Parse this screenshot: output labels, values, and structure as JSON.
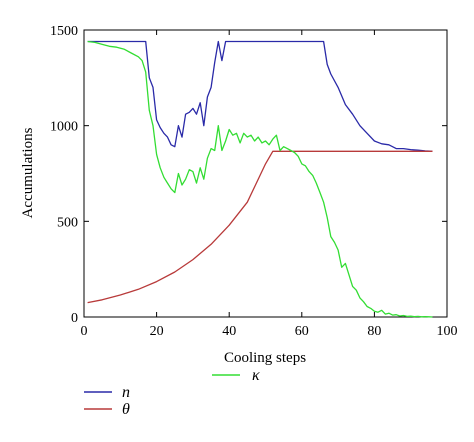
{
  "chart_data": {
    "type": "line",
    "title": "",
    "xlabel": "Cooling steps",
    "ylabel": "Accumulations",
    "xlim": [
      0,
      100
    ],
    "ylim": [
      0,
      1500
    ],
    "xticks": [
      0,
      20,
      40,
      60,
      80,
      100
    ],
    "yticks": [
      0,
      500,
      1000,
      1500
    ],
    "grid": false,
    "legend_position": "bottom-left",
    "series": [
      {
        "name": "n",
        "color": "#2a2aa8",
        "x": [
          1,
          17,
          18,
          19,
          20,
          21,
          22,
          23,
          24,
          25,
          26,
          27,
          28,
          29,
          30,
          31,
          32,
          33,
          34,
          35,
          36,
          37,
          38,
          39,
          40,
          50,
          60,
          66,
          67,
          68,
          70,
          72,
          74,
          76,
          78,
          80,
          82,
          84,
          86,
          88,
          90,
          92,
          94,
          96
        ],
        "values": [
          1440,
          1440,
          1250,
          1200,
          1030,
          990,
          960,
          940,
          900,
          890,
          1000,
          940,
          1060,
          1070,
          1090,
          1060,
          1120,
          1000,
          1150,
          1200,
          1330,
          1440,
          1340,
          1440,
          1440,
          1440,
          1440,
          1440,
          1320,
          1270,
          1200,
          1110,
          1060,
          1000,
          960,
          920,
          905,
          900,
          880,
          880,
          875,
          872,
          868,
          866
        ]
      },
      {
        "name": "θ",
        "color": "#b83a3a",
        "x": [
          1,
          5,
          10,
          15,
          20,
          25,
          30,
          35,
          40,
          45,
          50,
          52,
          55,
          60,
          70,
          80,
          90,
          96
        ],
        "values": [
          75,
          90,
          115,
          145,
          185,
          235,
          300,
          380,
          480,
          600,
          800,
          866,
          866,
          866,
          866,
          866,
          866,
          866
        ]
      },
      {
        "name": "κ",
        "color": "#33dd33",
        "x": [
          1,
          3,
          5,
          7,
          9,
          11,
          13,
          15,
          16,
          17,
          18,
          19,
          20,
          21,
          22,
          23,
          24,
          25,
          26,
          27,
          28,
          29,
          30,
          31,
          32,
          33,
          34,
          35,
          36,
          37,
          38,
          39,
          40,
          41,
          42,
          43,
          44,
          45,
          46,
          47,
          48,
          49,
          50,
          51,
          52,
          53,
          54,
          55,
          56,
          57,
          58,
          59,
          60,
          61,
          62,
          63,
          64,
          65,
          66,
          67,
          68,
          69,
          70,
          71,
          72,
          73,
          74,
          75,
          76,
          77,
          78,
          79,
          80,
          81,
          82,
          83,
          84,
          85,
          86,
          87,
          88,
          89,
          90,
          91,
          92,
          93,
          94,
          95,
          96
        ],
        "values": [
          1440,
          1435,
          1425,
          1415,
          1410,
          1400,
          1380,
          1360,
          1340,
          1280,
          1080,
          1000,
          850,
          780,
          730,
          700,
          670,
          650,
          750,
          690,
          720,
          770,
          760,
          700,
          780,
          720,
          830,
          880,
          870,
          1000,
          870,
          920,
          980,
          950,
          960,
          910,
          960,
          940,
          950,
          920,
          940,
          910,
          920,
          900,
          930,
          950,
          870,
          890,
          880,
          870,
          860,
          840,
          800,
          790,
          760,
          740,
          700,
          650,
          600,
          520,
          420,
          390,
          350,
          260,
          280,
          220,
          160,
          140,
          100,
          80,
          55,
          45,
          30,
          25,
          35,
          15,
          20,
          10,
          12,
          5,
          8,
          3,
          4,
          2,
          3,
          1,
          2,
          1,
          0
        ]
      }
    ]
  }
}
